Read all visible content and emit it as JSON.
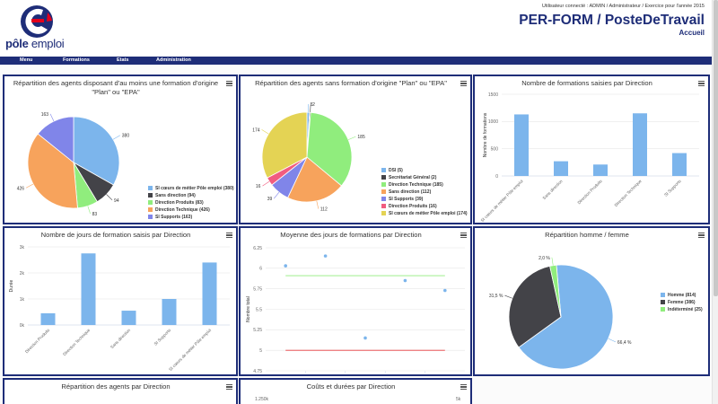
{
  "header": {
    "user_info": "Utilisateur connecté : ADMIN / Administrateur / Exercice pour l'année 2015",
    "app_title": "PER-FORM / PosteDeTravail",
    "page_subtitle": "Accueil",
    "logo_text_1": "pôle",
    "logo_text_2": " emploi"
  },
  "nav": {
    "items": [
      {
        "label": "Menu"
      },
      {
        "label": "Formations"
      },
      {
        "label": "Etats"
      },
      {
        "label": "Administration"
      }
    ]
  },
  "colors": {
    "brand": "#1e2d78",
    "brand_red": "#e3001b",
    "bar": "#7cb5ec"
  },
  "charts": [
    {
      "title": "Répartition des agents disposant d'au moins une formation d'origine \"Plan\" ou \"EPA\"",
      "chart_data": {
        "type": "pie",
        "slices": [
          {
            "name": "SI cœurs de métier Pôle emploi",
            "value": 380,
            "label": "380",
            "color": "#7cb5ec"
          },
          {
            "name": "Sans direction",
            "value": 94,
            "label": "94",
            "color": "#434348"
          },
          {
            "name": "Direction Produits",
            "value": 83,
            "label": "83",
            "color": "#90ed7d"
          },
          {
            "name": "Direction Technique",
            "value": 426,
            "label": "426",
            "color": "#f7a35c"
          },
          {
            "name": "SI Supports",
            "value": 163,
            "label": "163",
            "color": "#8085e9"
          }
        ],
        "legend_labels": [
          "SI cœurs de métier Pôle emploi (380)",
          "Sans direction (94)",
          "Direction Produits (83)",
          "Direction Technique (426)",
          "SI Supports (163)"
        ]
      }
    },
    {
      "title": "Répartition des agents sans formation d'origine \"Plan\" ou \"EPA\"",
      "chart_data": {
        "type": "pie",
        "slices": [
          {
            "name": "DSI",
            "value": 5,
            "label": "5",
            "color": "#7cb5ec"
          },
          {
            "name": "Secrétariat Général",
            "value": 2,
            "label": "2",
            "color": "#434348"
          },
          {
            "name": "Direction Technique",
            "value": 185,
            "label": "185",
            "color": "#90ed7d"
          },
          {
            "name": "Sans direction",
            "value": 112,
            "label": "112",
            "color": "#f7a35c"
          },
          {
            "name": "SI Supports",
            "value": 39,
            "label": "39",
            "color": "#8085e9"
          },
          {
            "name": "Direction Produits",
            "value": 16,
            "label": "16",
            "color": "#f15c80"
          },
          {
            "name": "SI cœurs de métier Pôle emploi",
            "value": 174,
            "label": "174",
            "color": "#e4d354"
          }
        ],
        "legend_labels": [
          "DSI (5)",
          "Secrétariat Général (2)",
          "Direction Technique (185)",
          "Sans direction (112)",
          "SI Supports (39)",
          "Direction Produits (16)",
          "SI cœurs de métier Pôle emploi (174)"
        ]
      }
    },
    {
      "title": "Nombre de formations saisies par Direction",
      "chart_data": {
        "type": "bar",
        "categories": [
          "SI cœurs de métier Pôle emploi",
          "Sans direction",
          "Direction Produits",
          "Direction Technique",
          "SI Supports"
        ],
        "values": [
          1130,
          270,
          210,
          1150,
          420
        ],
        "ylabel": "Nombre de formations",
        "ylim": [
          0,
          1500
        ],
        "yticks": [
          0,
          500,
          1000,
          1500
        ],
        "ytick_labels": [
          "0",
          "500",
          "1000",
          "1500"
        ]
      }
    },
    {
      "title": "Nombre de jours de formation saisis par Direction",
      "chart_data": {
        "type": "bar",
        "categories": [
          "Direction Produits",
          "Direction Technique",
          "Sans direction",
          "SI Supports",
          "SI cœurs de métier Pôle emploi"
        ],
        "values": [
          450,
          2750,
          550,
          1000,
          2400
        ],
        "ylabel": "Durée",
        "ylim": [
          0,
          3000
        ],
        "yticks": [
          0,
          1000,
          2000,
          3000
        ],
        "ytick_labels": [
          "0k",
          "1k",
          "2k",
          "3k"
        ]
      }
    },
    {
      "title": "Moyenne des jours de formations par Direction",
      "chart_data": {
        "type": "scatter",
        "points": [
          {
            "x": 0,
            "y": 6.03
          },
          {
            "x": 1,
            "y": 6.15
          },
          {
            "x": 2,
            "y": 5.15
          },
          {
            "x": 3,
            "y": 5.85
          },
          {
            "x": 4,
            "y": 5.73
          }
        ],
        "lines": [
          {
            "y": 5.91,
            "color": "#90ed7d"
          },
          {
            "y": 5.0,
            "color": "#e4393c"
          }
        ],
        "ylabel": "Nombre total",
        "ylim": [
          4.75,
          6.25
        ],
        "yticks": [
          4.75,
          5,
          5.25,
          5.5,
          5.75,
          6,
          6.25
        ],
        "ytick_labels": [
          "4.75",
          "5",
          "5.25",
          "5.5",
          "5.75",
          "6",
          "6.25"
        ]
      }
    },
    {
      "title": "Répartition homme / femme",
      "chart_data": {
        "type": "pie",
        "slices": [
          {
            "name": "Homme",
            "value": 814,
            "label": "66,4 %",
            "color": "#7cb5ec"
          },
          {
            "name": "Femme",
            "value": 386,
            "label": "31,5 %",
            "color": "#434348"
          },
          {
            "name": "Indéterminé",
            "value": 25,
            "label": "2,0 %",
            "color": "#90ed7d"
          }
        ],
        "legend_labels": [
          "Homme (814)",
          "Femme (386)",
          "Indéterminé (25)"
        ]
      }
    },
    {
      "title": "Répartition des agents par Direction"
    },
    {
      "title": "Coûts et durées par Direction",
      "chart_data": {
        "type": "bar",
        "ytick_labels": [
          "1.250k",
          "5k"
        ]
      }
    }
  ]
}
